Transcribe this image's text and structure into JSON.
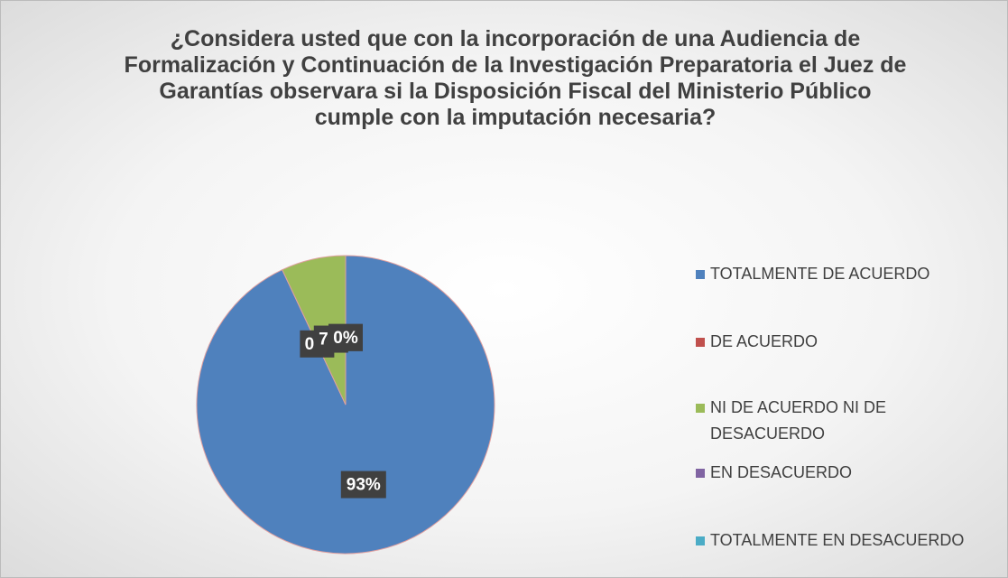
{
  "chart_data": {
    "type": "pie",
    "title": "¿Considera usted que con la incorporación de una Audiencia de Formalización y Continuación de la Investigación Preparatoria el Juez de Garantías observara si la Disposición Fiscal del Ministerio Público cumple con la imputación necesaria?",
    "categories": [
      "TOTALMENTE DE ACUERDO",
      "DE ACUERDO",
      "NI DE ACUERDO NI DE DESACUERDO",
      "EN DESACUERDO",
      "TOTALMENTE EN DESACUERDO"
    ],
    "values": [
      93,
      0,
      7,
      0,
      0
    ],
    "value_labels": [
      "93%",
      "0%",
      "7%",
      "0%",
      "0%"
    ],
    "colors": [
      "#4f81bd",
      "#c0504d",
      "#9bbb59",
      "#8064a2",
      "#4bacc6"
    ],
    "legend": "right"
  }
}
